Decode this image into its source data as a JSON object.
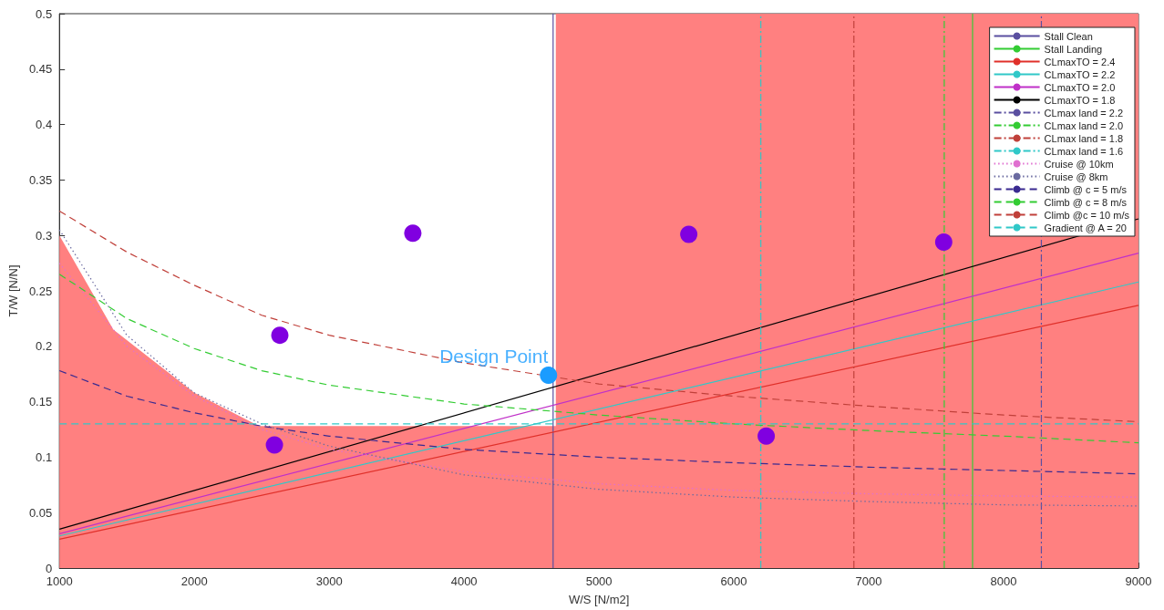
{
  "chart_data": {
    "type": "line",
    "xlabel": "W/S [N/m2]",
    "ylabel": "T/W [N/N]",
    "xlim": [
      1000,
      9000
    ],
    "xticks": [
      1000,
      2000,
      3000,
      4000,
      5000,
      6000,
      7000,
      8000,
      9000
    ],
    "ylim": [
      0,
      0.5
    ],
    "yticks": [
      0,
      0.05,
      0.1,
      0.15,
      0.2,
      0.25,
      0.3,
      0.35,
      0.4,
      0.45,
      0.5
    ],
    "grid": false,
    "legend": "top right",
    "marker": "none",
    "series": [
      {
        "type": "area",
        "color": "#ff8080",
        "x": [
          1000,
          1400,
          2000,
          2480,
          4680,
          4680,
          9000
        ],
        "values": [
          0.3,
          0.215,
          0.158,
          0.128,
          0.128,
          0.5,
          0.5
        ]
      },
      {
        "name": "Stall Clean",
        "color": "#5a4fa0",
        "line_style": "solid",
        "x": [
          4660,
          4660
        ],
        "values": [
          0,
          0.5
        ]
      },
      {
        "name": "Stall Landing",
        "color": "#33cc33",
        "line_style": "solid",
        "x": [
          7770,
          7770
        ],
        "values": [
          0,
          0.5
        ]
      },
      {
        "name": "CLmaxTO = 2.4",
        "color": "#e0302a",
        "line_style": "solid",
        "x": [
          1000,
          9000
        ],
        "values": [
          0.026,
          0.237
        ]
      },
      {
        "name": "CLmaxTO = 2.2",
        "color": "#30c8c8",
        "line_style": "solid",
        "x": [
          1000,
          9000
        ],
        "values": [
          0.029,
          0.258
        ]
      },
      {
        "name": "CLmaxTO = 2.0",
        "color": "#c030c8",
        "line_style": "solid",
        "x": [
          1000,
          9000
        ],
        "values": [
          0.031,
          0.284
        ]
      },
      {
        "name": "CLmaxTO = 1.8",
        "color": "#000000",
        "line_style": "solid",
        "x": [
          1000,
          9000
        ],
        "values": [
          0.035,
          0.315
        ]
      },
      {
        "name": "CLmax land = 2.2",
        "color": "#5a4fa0",
        "line_style": "dashdot",
        "x": [
          8280,
          8280
        ],
        "values": [
          0,
          0.5
        ]
      },
      {
        "name": "CLmax land = 2.0",
        "color": "#33cc33",
        "line_style": "dashdot",
        "x": [
          7560,
          7560
        ],
        "values": [
          0,
          0.5
        ]
      },
      {
        "name": "CLmax land = 1.8",
        "color": "#c0403a",
        "line_style": "dashdot",
        "x": [
          6890,
          6890
        ],
        "values": [
          0,
          0.5
        ]
      },
      {
        "name": "CLmax land = 1.6",
        "color": "#30c8c8",
        "line_style": "dashdot",
        "x": [
          6200,
          6200
        ],
        "values": [
          0,
          0.5
        ]
      },
      {
        "name": "Cruise @ 10km",
        "color": "#e070d0",
        "line_style": "dotted",
        "x": [
          1000,
          1500,
          2000,
          2500,
          3000,
          4000,
          5000,
          6000,
          7000,
          8000,
          9000
        ],
        "values": [
          0.275,
          0.2,
          0.155,
          0.125,
          0.107,
          0.087,
          0.076,
          0.07,
          0.067,
          0.065,
          0.064
        ]
      },
      {
        "name": "Cruise @ 8km",
        "color": "#6a6aa0",
        "line_style": "dotted",
        "x": [
          1000,
          1500,
          2000,
          2500,
          3000,
          4000,
          5000,
          6000,
          7000,
          8000,
          9000
        ],
        "values": [
          0.305,
          0.21,
          0.158,
          0.13,
          0.11,
          0.084,
          0.071,
          0.064,
          0.06,
          0.057,
          0.056
        ]
      },
      {
        "name": "Climb @ c = 5 m/s",
        "color": "#3a2a90",
        "line_style": "dashed",
        "x": [
          1000,
          1500,
          2000,
          2500,
          3000,
          4000,
          5000,
          6000,
          7000,
          8000,
          9000
        ],
        "values": [
          0.178,
          0.155,
          0.14,
          0.128,
          0.119,
          0.107,
          0.1,
          0.095,
          0.091,
          0.088,
          0.085
        ]
      },
      {
        "name": "Climb @ c = 8 m/s",
        "color": "#33cc33",
        "line_style": "dashed",
        "x": [
          1000,
          1500,
          2000,
          2500,
          3000,
          4000,
          5000,
          6000,
          7000,
          8000,
          9000
        ],
        "values": [
          0.265,
          0.225,
          0.198,
          0.178,
          0.165,
          0.148,
          0.138,
          0.13,
          0.124,
          0.119,
          0.113
        ]
      },
      {
        "name": "Climb @c = 10 m/s",
        "color": "#c0403a",
        "line_style": "dashed",
        "x": [
          1000,
          1500,
          2000,
          2500,
          3000,
          4000,
          5000,
          6000,
          7000,
          8000,
          9000
        ],
        "values": [
          0.322,
          0.285,
          0.255,
          0.228,
          0.21,
          0.185,
          0.166,
          0.155,
          0.146,
          0.138,
          0.132
        ]
      },
      {
        "name": "Gradient @ A = 20",
        "color": "#30c8c8",
        "line_style": "dashed",
        "x": [
          1000,
          9000
        ],
        "values": [
          0.13,
          0.13
        ]
      },
      {
        "type": "scatter",
        "color": "#8000e0",
        "marker": "circle",
        "x": [
          2594,
          2634,
          3620,
          5666,
          6240,
          7556
        ],
        "values": [
          0.111,
          0.21,
          0.302,
          0.301,
          0.119,
          0.294
        ]
      },
      {
        "type": "scatter",
        "color": "#1a9cff",
        "marker": "circle",
        "x": [
          4626
        ],
        "values": [
          0.174
        ]
      }
    ],
    "annotations": [
      {
        "text": "Design Point",
        "x": 4626,
        "y": 0.174
      }
    ]
  }
}
